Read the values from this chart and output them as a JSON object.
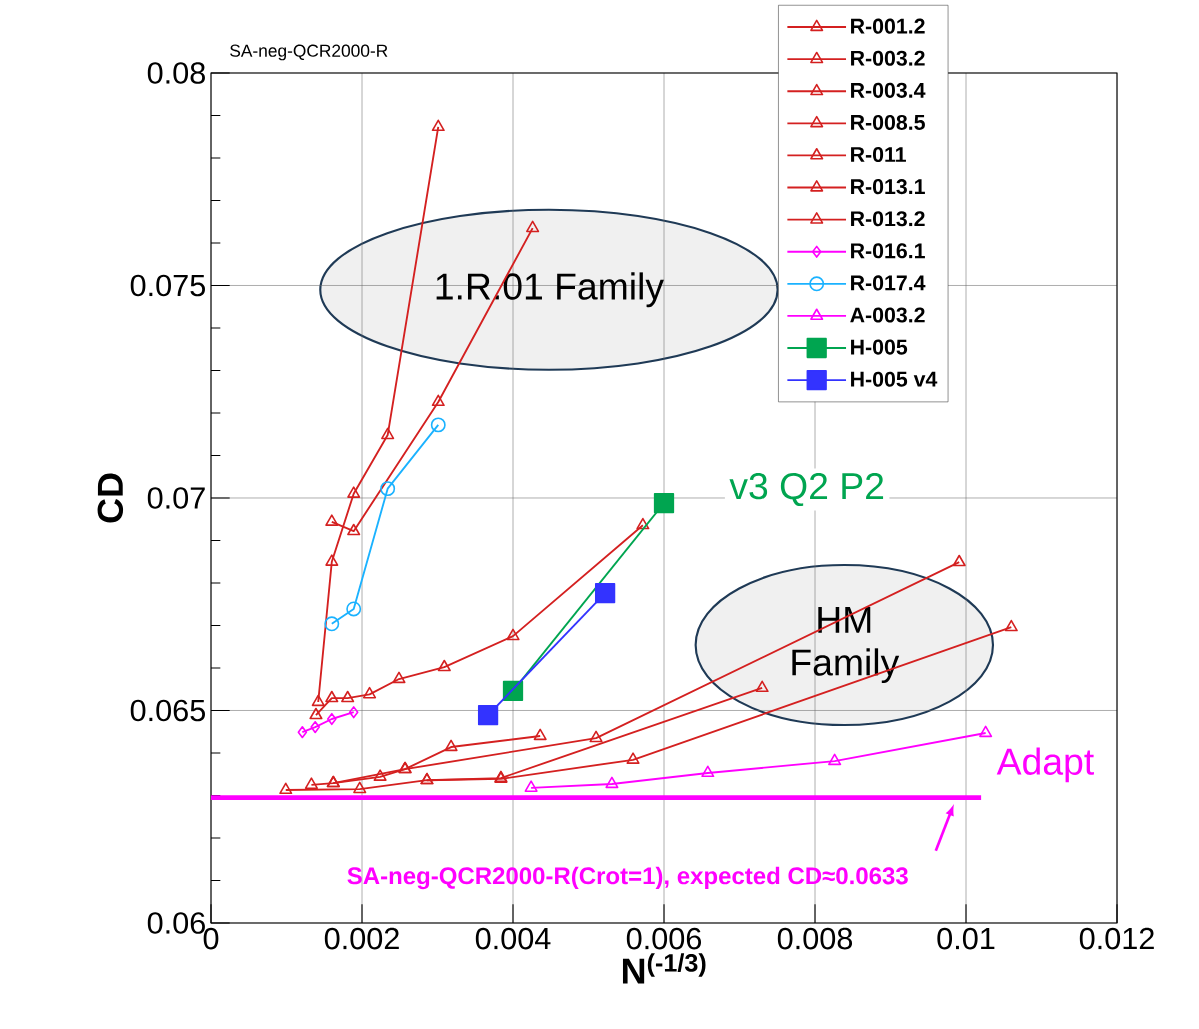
{
  "chart_data": {
    "type": "line",
    "title": "SA-neg-QCR2000-R",
    "xlabel": "N$^{(-1/3)}$",
    "ylabel": "CD",
    "xlim": [
      0,
      0.012
    ],
    "ylim": [
      0.06,
      0.08
    ],
    "xticks": [
      0,
      0.002,
      0.004,
      0.006,
      0.008,
      0.01,
      0.012
    ],
    "yticks": [
      0.06,
      0.065,
      0.07,
      0.075,
      0.08
    ],
    "grid": true,
    "legend": "top right",
    "series": [
      {
        "name": "R-001.2",
        "color": "#d42020",
        "marker": "triangle",
        "x": [
          0.00142,
          0.0016,
          0.00189,
          0.00234,
          0.00301
        ],
        "values": [
          0.0652,
          0.0685,
          0.0701,
          0.07148,
          0.07873
        ]
      },
      {
        "name": "R-003.2",
        "color": "#d42020",
        "marker": "triangle",
        "x": [
          0.00139,
          0.0016,
          0.00181,
          0.0021,
          0.00249,
          0.00309,
          0.004,
          0.00572
        ],
        "values": [
          0.06489,
          0.06529,
          0.06529,
          0.06538,
          0.06574,
          0.06602,
          0.06675,
          0.06936
        ]
      },
      {
        "name": "R-003.4",
        "color": "#d42020",
        "marker": "triangle",
        "x": [
          0.0016,
          0.00189,
          0.00301,
          0.00426
        ],
        "values": [
          0.06944,
          0.06922,
          0.07226,
          0.07635
        ]
      },
      {
        "name": "R-008.5",
        "color": "#d42020",
        "marker": "triangle",
        "x": [
          0.00133,
          0.00162,
          0.00224,
          0.00257,
          0.00318,
          0.00436
        ],
        "values": [
          0.06325,
          0.06329,
          0.06344,
          0.06362,
          0.06414,
          0.0644
        ]
      },
      {
        "name": "R-011",
        "color": "#d42020",
        "marker": "triangle",
        "x": [
          0.00162,
          0.00257,
          0.0051,
          0.00991
        ],
        "values": [
          0.06329,
          0.06362,
          0.06435,
          0.06849
        ]
      },
      {
        "name": "R-013.1",
        "color": "#d42020",
        "marker": "triangle",
        "x": [
          0.00099,
          0.00197,
          0.00286,
          0.00384,
          0.00559,
          0.0106
        ],
        "values": [
          0.06313,
          0.06315,
          0.06336,
          0.06339,
          0.06384,
          0.06696
        ]
      },
      {
        "name": "R-013.2",
        "color": "#d42020",
        "marker": "triangle",
        "x": [
          0.00286,
          0.00384,
          0.0073
        ],
        "values": [
          0.06336,
          0.06341,
          0.06553
        ]
      },
      {
        "name": "R-016.1",
        "color": "#ff00ff",
        "marker": "diamond",
        "x": [
          0.00121,
          0.00138,
          0.0016,
          0.00189
        ],
        "values": [
          0.06449,
          0.06461,
          0.0648,
          0.06496
        ]
      },
      {
        "name": "R-017.4",
        "color": "#1ab2ff",
        "marker": "circle",
        "x": [
          0.0016,
          0.00189,
          0.00234,
          0.00301
        ],
        "values": [
          0.06704,
          0.06739,
          0.07022,
          0.07172
        ]
      },
      {
        "name": "A-003.2",
        "color": "#ff00ff",
        "marker": "triangle",
        "x": [
          0.00424,
          0.00531,
          0.00658,
          0.00826,
          0.01026
        ],
        "values": [
          0.06318,
          0.06327,
          0.06353,
          0.06381,
          0.06447
        ]
      },
      {
        "name": "H-005",
        "color": "#00a550",
        "marker": "square",
        "x": [
          0.004,
          0.006
        ],
        "values": [
          0.06546,
          0.06988
        ]
      },
      {
        "name": "H-005 v4",
        "color": "#3333ff",
        "marker": "square",
        "x": [
          0.00367,
          0.00522
        ],
        "values": [
          0.06489,
          0.06776
        ]
      }
    ],
    "ref_lines": [
      {
        "axis": "y",
        "value": 0.06295,
        "color": "#ff00ff"
      }
    ],
    "annotations": [
      "1.R.01 Family",
      "HM Family",
      "v3 Q2 P2",
      "Adapt",
      "SA-neg-QCR2000-R(Crot=1), expected CD≈0.0633"
    ]
  }
}
